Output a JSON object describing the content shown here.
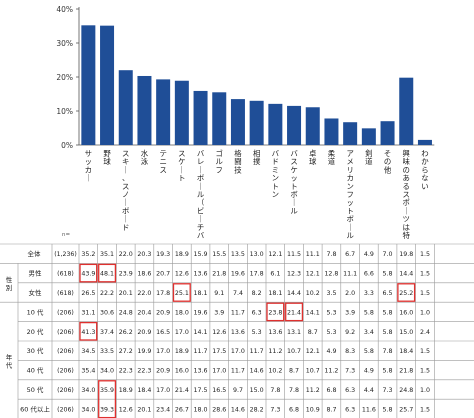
{
  "chart_data": {
    "type": "bar",
    "n_label": "n=",
    "ylim": [
      0,
      40
    ],
    "yticks": [
      "0%",
      "10%",
      "20%",
      "30%",
      "40%"
    ],
    "color": "#1f4e97",
    "grid": false,
    "categories": [
      "サッカー",
      "野球",
      "スキー、スノーボード",
      "水泳",
      "テニス",
      "スケート",
      "バレーボール（ビーチバレー含む）",
      "ゴルフ",
      "格闘技",
      "相撲",
      "バドミントン",
      "バスケットボール",
      "卓球",
      "柔道",
      "アメリカンフットボール、ラグビー",
      "剣道",
      "その他",
      "興味のあるスポーツは特にない",
      "わからない"
    ],
    "values": [
      35.2,
      35.1,
      22.0,
      20.3,
      19.3,
      18.9,
      15.9,
      15.5,
      13.5,
      13.0,
      12.1,
      11.5,
      11.1,
      7.8,
      6.7,
      4.9,
      7.0,
      19.8,
      1.5
    ]
  },
  "table": {
    "highlight_color": "#e0302e",
    "rows": [
      {
        "group": "",
        "label": "全体",
        "n": "(1,236)",
        "values": [
          "35.2",
          "35.1",
          "22.0",
          "20.3",
          "19.3",
          "18.9",
          "15.9",
          "15.5",
          "13.5",
          "13.0",
          "12.1",
          "11.5",
          "11.1",
          "7.8",
          "6.7",
          "4.9",
          "7.0",
          "19.8",
          "1.5"
        ],
        "highlights": []
      },
      {
        "group": "性別",
        "label": "男性",
        "n": "(618)",
        "values": [
          "43.9",
          "48.1",
          "23.9",
          "18.6",
          "20.7",
          "12.6",
          "13.6",
          "21.8",
          "19.6",
          "17.8",
          "6.1",
          "12.3",
          "12.1",
          "12.8",
          "11.1",
          "6.6",
          "5.8",
          "14.4",
          "1.5"
        ],
        "highlights": [
          0,
          1
        ]
      },
      {
        "group": "",
        "label": "女性",
        "n": "(618)",
        "values": [
          "26.5",
          "22.2",
          "20.1",
          "22.0",
          "17.8",
          "25.1",
          "18.1",
          "9.1",
          "7.4",
          "8.2",
          "18.1",
          "14.4",
          "10.2",
          "3.5",
          "2.0",
          "3.3",
          "6.5",
          "25.2",
          "1.5"
        ],
        "highlights": [
          5,
          17
        ]
      },
      {
        "group": "年代",
        "label": "10 代",
        "n": "(206)",
        "values": [
          "31.1",
          "30.6",
          "24.8",
          "20.4",
          "20.9",
          "18.0",
          "19.6",
          "3.9",
          "11.7",
          "6.3",
          "23.8",
          "21.4",
          "14.1",
          "5.3",
          "3.9",
          "5.8",
          "5.8",
          "16.0",
          "1.0"
        ],
        "highlights": [
          10,
          11
        ]
      },
      {
        "group": "",
        "label": "20 代",
        "n": "(206)",
        "values": [
          "41.3",
          "37.4",
          "26.2",
          "20.9",
          "16.5",
          "17.0",
          "14.1",
          "12.6",
          "13.6",
          "5.3",
          "13.6",
          "13.1",
          "8.7",
          "5.3",
          "9.2",
          "3.4",
          "5.8",
          "15.0",
          "2.4"
        ],
        "highlights": [
          0
        ]
      },
      {
        "group": "",
        "label": "30 代",
        "n": "(206)",
        "values": [
          "34.5",
          "33.5",
          "27.2",
          "19.9",
          "17.0",
          "18.9",
          "11.7",
          "17.5",
          "17.0",
          "11.7",
          "11.2",
          "10.7",
          "12.1",
          "4.9",
          "8.3",
          "5.8",
          "7.8",
          "18.4",
          "1.5"
        ],
        "highlights": []
      },
      {
        "group": "",
        "label": "40 代",
        "n": "(206)",
        "values": [
          "35.4",
          "34.0",
          "22.3",
          "22.3",
          "20.9",
          "16.0",
          "13.6",
          "17.0",
          "11.7",
          "14.6",
          "10.2",
          "8.7",
          "10.7",
          "11.2",
          "7.3",
          "4.9",
          "5.8",
          "21.8",
          "1.5"
        ],
        "highlights": []
      },
      {
        "group": "",
        "label": "50 代",
        "n": "(206)",
        "values": [
          "34.0",
          "35.9",
          "18.9",
          "18.4",
          "17.0",
          "21.4",
          "17.5",
          "16.5",
          "9.7",
          "15.0",
          "7.8",
          "7.8",
          "11.2",
          "6.8",
          "6.3",
          "4.4",
          "7.3",
          "24.8",
          "1.0"
        ],
        "highlights": [
          1
        ]
      },
      {
        "group": "",
        "label": "60 代以上",
        "n": "(206)",
        "values": [
          "34.0",
          "39.3",
          "12.6",
          "20.1",
          "23.4",
          "26.7",
          "18.0",
          "28.6",
          "14.6",
          "28.2",
          "7.3",
          "6.8",
          "10.9",
          "8.7",
          "6.3",
          "11.6",
          "5.8",
          "25.7",
          "1.5"
        ],
        "highlights": [
          1
        ]
      }
    ]
  }
}
